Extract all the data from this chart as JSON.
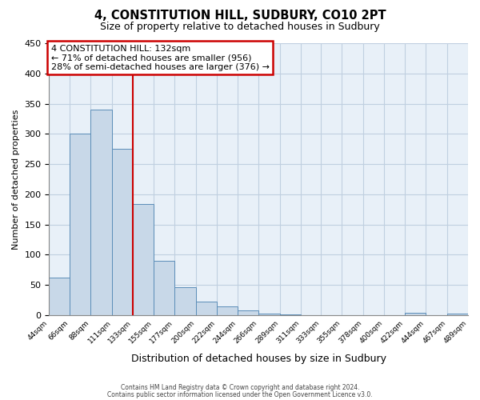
{
  "title": "4, CONSTITUTION HILL, SUDBURY, CO10 2PT",
  "subtitle": "Size of property relative to detached houses in Sudbury",
  "xlabel": "Distribution of detached houses by size in Sudbury",
  "ylabel": "Number of detached properties",
  "bar_color": "#c8d8e8",
  "bar_edge_color": "#5b8db8",
  "bin_edges": [
    44,
    66,
    88,
    111,
    133,
    155,
    177,
    200,
    222,
    244,
    266,
    289,
    311,
    333,
    355,
    378,
    400,
    422,
    444,
    467,
    489
  ],
  "bin_labels": [
    "44sqm",
    "66sqm",
    "88sqm",
    "111sqm",
    "133sqm",
    "155sqm",
    "177sqm",
    "200sqm",
    "222sqm",
    "244sqm",
    "266sqm",
    "289sqm",
    "311sqm",
    "333sqm",
    "355sqm",
    "378sqm",
    "400sqm",
    "422sqm",
    "444sqm",
    "467sqm",
    "489sqm"
  ],
  "counts": [
    62,
    301,
    340,
    275,
    184,
    90,
    46,
    23,
    15,
    8,
    3,
    1,
    0,
    0,
    0,
    0,
    0,
    4,
    0,
    3
  ],
  "vline_x": 133,
  "annotation_title": "4 CONSTITUTION HILL: 132sqm",
  "annotation_line1": "← 71% of detached houses are smaller (956)",
  "annotation_line2": "28% of semi-detached houses are larger (376) →",
  "annotation_box_color": "#cc0000",
  "ylim": [
    0,
    450
  ],
  "yticks": [
    0,
    50,
    100,
    150,
    200,
    250,
    300,
    350,
    400,
    450
  ],
  "footnote1": "Contains HM Land Registry data © Crown copyright and database right 2024.",
  "footnote2": "Contains public sector information licensed under the Open Government Licence v3.0.",
  "bg_color": "#e8f0f8",
  "grid_color": "#c0cfe0"
}
